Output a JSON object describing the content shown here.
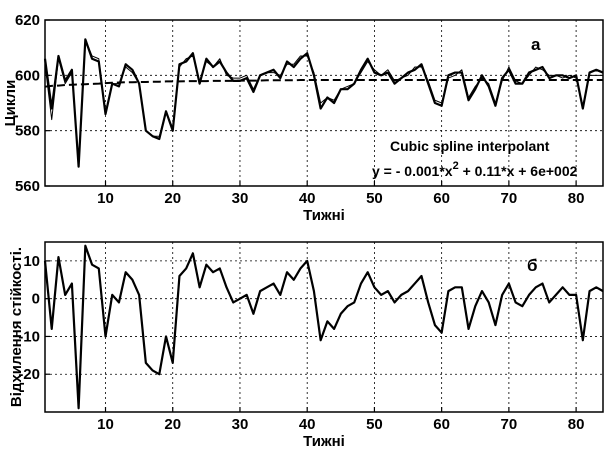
{
  "chart_data": [
    {
      "type": "line",
      "panel_label": "а",
      "xlabel": "Тижні",
      "ylabel": "Цикли",
      "xlim": [
        1,
        84
      ],
      "ylim": [
        560,
        620
      ],
      "xticks": [
        10,
        20,
        30,
        40,
        50,
        60,
        70,
        80
      ],
      "yticks": [
        560,
        580,
        600,
        620
      ],
      "grid": true,
      "annotations": [
        "Cubic spline interpolant",
        "y = - 0.001*x^2 + 0.11*x + 6e+002"
      ],
      "x": [
        1,
        2,
        3,
        4,
        5,
        6,
        7,
        8,
        9,
        10,
        11,
        12,
        13,
        14,
        15,
        16,
        17,
        18,
        19,
        20,
        21,
        22,
        23,
        24,
        25,
        26,
        27,
        28,
        29,
        30,
        31,
        32,
        33,
        34,
        35,
        36,
        37,
        38,
        39,
        40,
        41,
        42,
        43,
        44,
        45,
        46,
        47,
        48,
        49,
        50,
        51,
        52,
        53,
        54,
        55,
        56,
        57,
        58,
        59,
        60,
        61,
        62,
        63,
        64,
        65,
        66,
        67,
        68,
        69,
        70,
        71,
        72,
        73,
        74,
        75,
        76,
        77,
        78,
        79,
        80,
        81,
        82,
        83,
        84
      ],
      "series": [
        {
          "values": [
            606,
            588,
            607,
            598,
            602,
            567,
            613,
            606,
            605,
            586,
            597,
            596,
            604,
            602,
            597,
            580,
            578,
            577,
            587,
            580,
            604,
            605,
            608,
            597,
            606,
            603,
            605,
            601,
            598,
            598,
            599,
            594,
            600,
            601,
            602,
            599,
            605,
            603,
            606,
            608,
            600,
            588,
            592,
            590,
            595,
            595,
            597,
            602,
            606,
            601,
            600,
            601,
            597,
            599,
            601,
            602,
            604,
            597,
            590,
            589,
            600,
            601,
            601,
            591,
            595,
            600,
            596,
            589,
            599,
            602,
            597,
            597,
            601,
            602,
            603,
            599,
            600,
            600,
            599,
            600,
            588,
            601,
            602,
            601
          ]
        },
        {
          "values": [
            604,
            584,
            606,
            597,
            601,
            568,
            613,
            607,
            606,
            586,
            597,
            597,
            603,
            601,
            597,
            580,
            578,
            578,
            587,
            581,
            603,
            606,
            607,
            598,
            605,
            603,
            606,
            600,
            599,
            599,
            600,
            595,
            600,
            601,
            601,
            600,
            604,
            604,
            607,
            607,
            601,
            590,
            592,
            591,
            595,
            596,
            597,
            601,
            605,
            602,
            600,
            602,
            598,
            599,
            600,
            603,
            603,
            598,
            591,
            590,
            599,
            600,
            602,
            592,
            596,
            599,
            597,
            590,
            598,
            603,
            598,
            597,
            600,
            603,
            602,
            600,
            600,
            599,
            600,
            599,
            589,
            600,
            600,
            600
          ]
        },
        {
          "values": [
            595.9,
            596.2,
            596.3,
            596.5,
            596.6,
            596.7,
            596.8,
            596.9,
            597.0,
            597.2,
            597.3,
            597.4,
            597.5,
            597.5,
            597.6,
            597.6,
            597.7,
            597.7,
            597.8,
            597.8,
            597.8,
            597.9,
            597.9,
            597.9,
            597.9,
            598.0,
            598.0,
            598.0,
            598.0,
            598.1,
            598.1,
            598.1,
            598.1,
            598.2,
            598.2,
            598.2,
            598.2,
            598.2,
            598.3,
            598.3,
            598.3,
            598.3,
            598.3,
            598.3,
            598.3,
            598.3,
            598.3,
            598.3,
            598.3,
            598.3,
            598.3,
            598.3,
            598.3,
            598.3,
            598.3,
            598.3,
            598.3,
            598.3,
            598.3,
            598.3,
            598.3,
            598.3,
            598.3,
            598.3,
            598.3,
            598.3,
            598.3,
            598.3,
            598.3,
            598.3,
            598.3,
            598.3,
            598.3,
            598.3,
            598.3,
            598.3,
            598.3,
            598.3,
            598.3,
            598.3,
            598.3,
            598.3,
            598.3,
            598.3
          ]
        }
      ]
    },
    {
      "type": "line",
      "panel_label": "б",
      "xlabel": "Тижні",
      "ylabel": "Відхилення стійкості.",
      "xlim": [
        1,
        84
      ],
      "ylim": [
        -30,
        15
      ],
      "xticks": [
        10,
        20,
        30,
        40,
        50,
        60,
        70,
        80
      ],
      "yticks": [
        -20,
        -10,
        0,
        10
      ],
      "grid": true,
      "x": [
        1,
        2,
        3,
        4,
        5,
        6,
        7,
        8,
        9,
        10,
        11,
        12,
        13,
        14,
        15,
        16,
        17,
        18,
        19,
        20,
        21,
        22,
        23,
        24,
        25,
        26,
        27,
        28,
        29,
        30,
        31,
        32,
        33,
        34,
        35,
        36,
        37,
        38,
        39,
        40,
        41,
        42,
        43,
        44,
        45,
        46,
        47,
        48,
        49,
        50,
        51,
        52,
        53,
        54,
        55,
        56,
        57,
        58,
        59,
        60,
        61,
        62,
        63,
        64,
        65,
        66,
        67,
        68,
        69,
        70,
        71,
        72,
        73,
        74,
        75,
        76,
        77,
        78,
        79,
        80,
        81,
        82,
        83,
        84
      ],
      "series": [
        {
          "values": [
            10,
            -8,
            11,
            1,
            4,
            -29,
            14,
            9,
            8,
            -10,
            1,
            -1,
            7,
            5,
            1,
            -17,
            -19,
            -20,
            -10,
            -17,
            6,
            8,
            12,
            3,
            9,
            7,
            8,
            3,
            -1,
            0,
            1,
            -4,
            2,
            3,
            4,
            1,
            7,
            5,
            8,
            10,
            2,
            -11,
            -6,
            -8,
            -4,
            -2,
            -1,
            4,
            7,
            3,
            1,
            2,
            -1,
            1,
            2,
            4,
            6,
            -1,
            -7,
            -9,
            2,
            3,
            3,
            -8,
            -2,
            2,
            -1,
            -7,
            1,
            4,
            -1,
            -2,
            1,
            3,
            4,
            -1,
            1,
            3,
            1,
            1,
            -11,
            2,
            3,
            2
          ]
        }
      ]
    }
  ]
}
